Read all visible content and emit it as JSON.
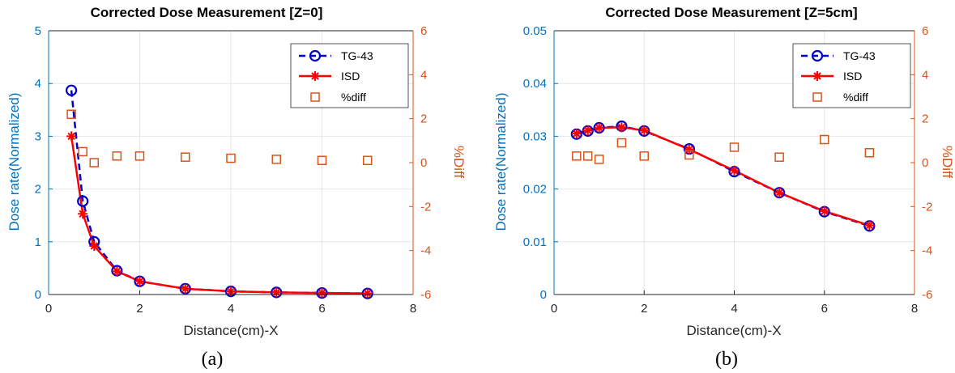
{
  "colors": {
    "left_axis": "#0072BD",
    "right_axis": "#D95319",
    "tg43": "#0000CC",
    "isd": "#FF0000",
    "diff": "#D95319",
    "grid": "#E6E6E6"
  },
  "chart_data": [
    {
      "type": "line",
      "caption": "(a)",
      "title": "Corrected Dose Measurement [Z=0]",
      "xlabel": "Distance(cm)-X",
      "ylabel_left": "Dose rate(Normalized)",
      "ylabel_right": "%Diff",
      "xlim": [
        0,
        8
      ],
      "ylim_left": [
        0,
        5
      ],
      "ylim_right": [
        -6,
        6
      ],
      "xticks": [
        "0",
        "2",
        "4",
        "6",
        "8"
      ],
      "yticks_left": [
        "0",
        "1",
        "2",
        "3",
        "4",
        "5"
      ],
      "yticks_right": [
        "-6",
        "-4",
        "-2",
        "0",
        "2",
        "4",
        "6"
      ],
      "grid": true,
      "legend_position": "top-right",
      "series": [
        {
          "name": "TG-43",
          "style": "dashed line with circle markers",
          "axis": "left",
          "x": [
            0.5,
            0.75,
            1,
            1.5,
            2,
            3,
            4,
            5,
            6,
            7
          ],
          "y": [
            3.87,
            1.77,
            1.0,
            0.45,
            0.25,
            0.11,
            0.06,
            0.04,
            0.03,
            0.02
          ]
        },
        {
          "name": "ISD",
          "style": "solid line with star markers",
          "axis": "left",
          "x": [
            0.5,
            0.75,
            1,
            1.5,
            2,
            3,
            4,
            5,
            6,
            7
          ],
          "y": [
            3.0,
            1.53,
            0.92,
            0.44,
            0.25,
            0.11,
            0.06,
            0.04,
            0.03,
            0.02
          ]
        },
        {
          "name": "%diff",
          "style": "square markers",
          "axis": "right",
          "x": [
            0.5,
            0.75,
            1,
            1.5,
            2,
            3,
            4,
            5,
            6,
            7
          ],
          "y": [
            2.2,
            0.5,
            0.0,
            0.3,
            0.3,
            0.25,
            0.2,
            0.15,
            0.1,
            0.1
          ]
        }
      ]
    },
    {
      "type": "line",
      "caption": "(b)",
      "title": "Corrected Dose Measurement [Z=5cm]",
      "xlabel": "Distance(cm)-X",
      "ylabel_left": "Dose rate(Normalized)",
      "ylabel_right": "%Diff",
      "xlim": [
        0,
        8
      ],
      "ylim_left": [
        0,
        0.05
      ],
      "ylim_right": [
        -6,
        6
      ],
      "xticks": [
        "0",
        "2",
        "4",
        "6",
        "8"
      ],
      "yticks_left": [
        "0",
        "0.01",
        "0.02",
        "0.03",
        "0.04",
        "0.05"
      ],
      "yticks_right": [
        "-6",
        "-4",
        "-2",
        "0",
        "2",
        "4",
        "6"
      ],
      "grid": true,
      "legend_position": "top-right",
      "series": [
        {
          "name": "TG-43",
          "style": "dashed line with circle markers",
          "axis": "left",
          "x": [
            0.5,
            0.75,
            1,
            1.5,
            2,
            3,
            4,
            5,
            6,
            7
          ],
          "y": [
            0.0304,
            0.031,
            0.0316,
            0.0319,
            0.031,
            0.0276,
            0.0233,
            0.0193,
            0.0157,
            0.013
          ]
        },
        {
          "name": "ISD",
          "style": "solid line with star markers",
          "axis": "left",
          "x": [
            0.5,
            0.75,
            1,
            1.5,
            2,
            3,
            4,
            5,
            6,
            7
          ],
          "y": [
            0.0305,
            0.0311,
            0.0316,
            0.0317,
            0.0311,
            0.0275,
            0.0235,
            0.0193,
            0.0158,
            0.0131
          ]
        },
        {
          "name": "%diff",
          "style": "square markers",
          "axis": "right",
          "x": [
            0.5,
            0.75,
            1,
            1.5,
            2,
            3,
            4,
            5,
            6,
            7
          ],
          "y": [
            0.3,
            0.3,
            0.15,
            0.9,
            0.3,
            0.35,
            0.7,
            0.25,
            1.05,
            0.45
          ]
        }
      ]
    }
  ]
}
